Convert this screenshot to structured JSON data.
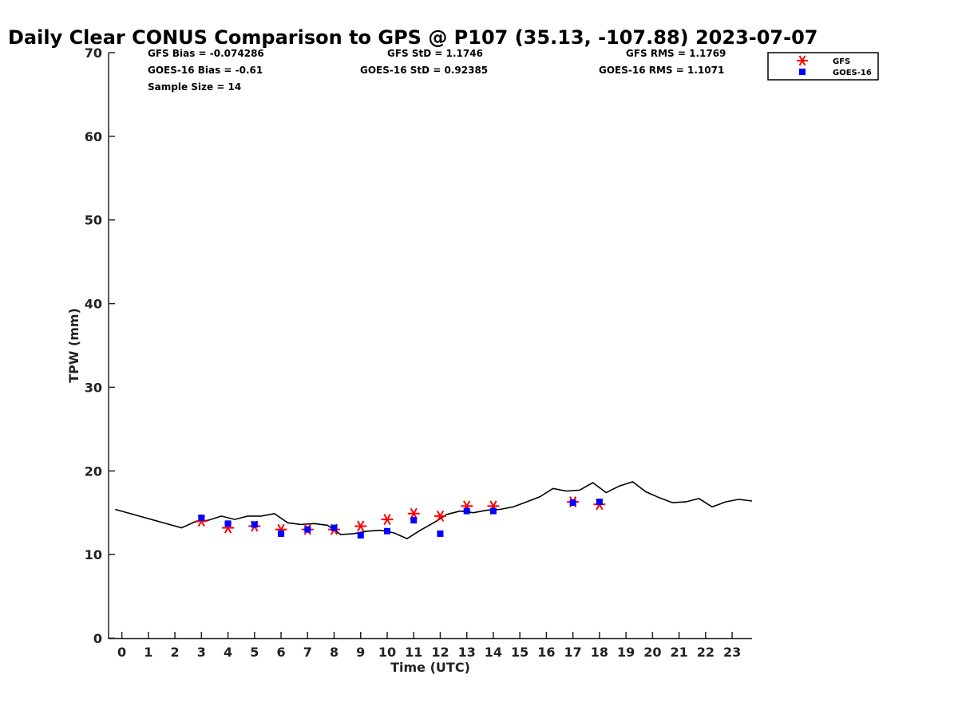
{
  "chart_data": {
    "type": "scatter",
    "title": "Daily Clear CONUS Comparison to GPS @ P107 (35.13, -107.88) 2023-07-07",
    "xlabel": "Time (UTC)",
    "ylabel": "TPW (mm)",
    "xlim": [
      -0.5,
      23.75
    ],
    "ylim": [
      0,
      70
    ],
    "xticks": [
      0,
      1,
      2,
      3,
      4,
      5,
      6,
      7,
      8,
      9,
      10,
      11,
      12,
      13,
      14,
      15,
      16,
      17,
      18,
      19,
      20,
      21,
      22,
      23
    ],
    "yticks": [
      0,
      10,
      20,
      30,
      40,
      50,
      60,
      70
    ],
    "grid": false,
    "legend_position": "top-right",
    "stats": {
      "gfs_bias": "GFS Bias = -0.074286",
      "gfs_std": "GFS StD = 1.1746",
      "gfs_rms": "GFS RMS = 1.1769",
      "goes_bias": "GOES-16 Bias = -0.61",
      "goes_std": "GOES-16 StD = 0.92385",
      "goes_rms": "GOES-16 RMS = 1.1071",
      "sample_size": "Sample Size = 14"
    },
    "series": [
      {
        "kind": "line",
        "color": "#000000",
        "x": [
          -0.25,
          2.25,
          2.75,
          3.25,
          3.75,
          4.25,
          4.75,
          5.25,
          5.75,
          6.25,
          6.75,
          7.25,
          7.75,
          8.25,
          8.75,
          9.25,
          9.75,
          10.25,
          10.75,
          11.25,
          11.75,
          12.25,
          12.75,
          13.25,
          13.75,
          14.25,
          14.75,
          15.25,
          15.75,
          16.25,
          16.75,
          17.25,
          17.75,
          18.25,
          18.75,
          19.25,
          19.75,
          20.25,
          20.75,
          21.25,
          21.75,
          22.25,
          22.75,
          23.25,
          23.75
        ],
        "y": [
          15.4,
          13.2,
          13.9,
          14.1,
          14.6,
          14.2,
          14.6,
          14.6,
          14.9,
          13.8,
          13.6,
          13.7,
          13.5,
          12.4,
          12.5,
          12.8,
          12.9,
          12.6,
          11.9,
          12.9,
          13.8,
          14.8,
          15.2,
          15.0,
          15.3,
          15.4,
          15.7,
          16.3,
          16.9,
          17.9,
          17.6,
          17.7,
          18.6,
          17.4,
          18.2,
          18.7,
          17.5,
          16.8,
          16.2,
          16.3,
          16.7,
          15.7,
          16.3,
          16.6,
          16.4
        ]
      },
      {
        "name": "GFS",
        "kind": "asterisk",
        "color": "#ff0000",
        "x": [
          3,
          4,
          5,
          6,
          7,
          8,
          9,
          10,
          11,
          12,
          13,
          14,
          17,
          18
        ],
        "y": [
          14.0,
          13.2,
          13.4,
          13.0,
          13.0,
          13.0,
          13.4,
          14.2,
          14.9,
          14.6,
          15.8,
          15.8,
          16.3,
          16.0
        ]
      },
      {
        "name": "GOES-16",
        "kind": "square",
        "color": "#0000ff",
        "x": [
          3,
          4,
          5,
          6,
          7,
          8,
          9,
          10,
          11,
          12,
          13,
          14,
          17,
          18
        ],
        "y": [
          14.4,
          13.7,
          13.6,
          12.5,
          13.0,
          13.2,
          12.3,
          12.8,
          14.1,
          12.5,
          15.2,
          15.2,
          16.2,
          16.3
        ]
      }
    ]
  }
}
